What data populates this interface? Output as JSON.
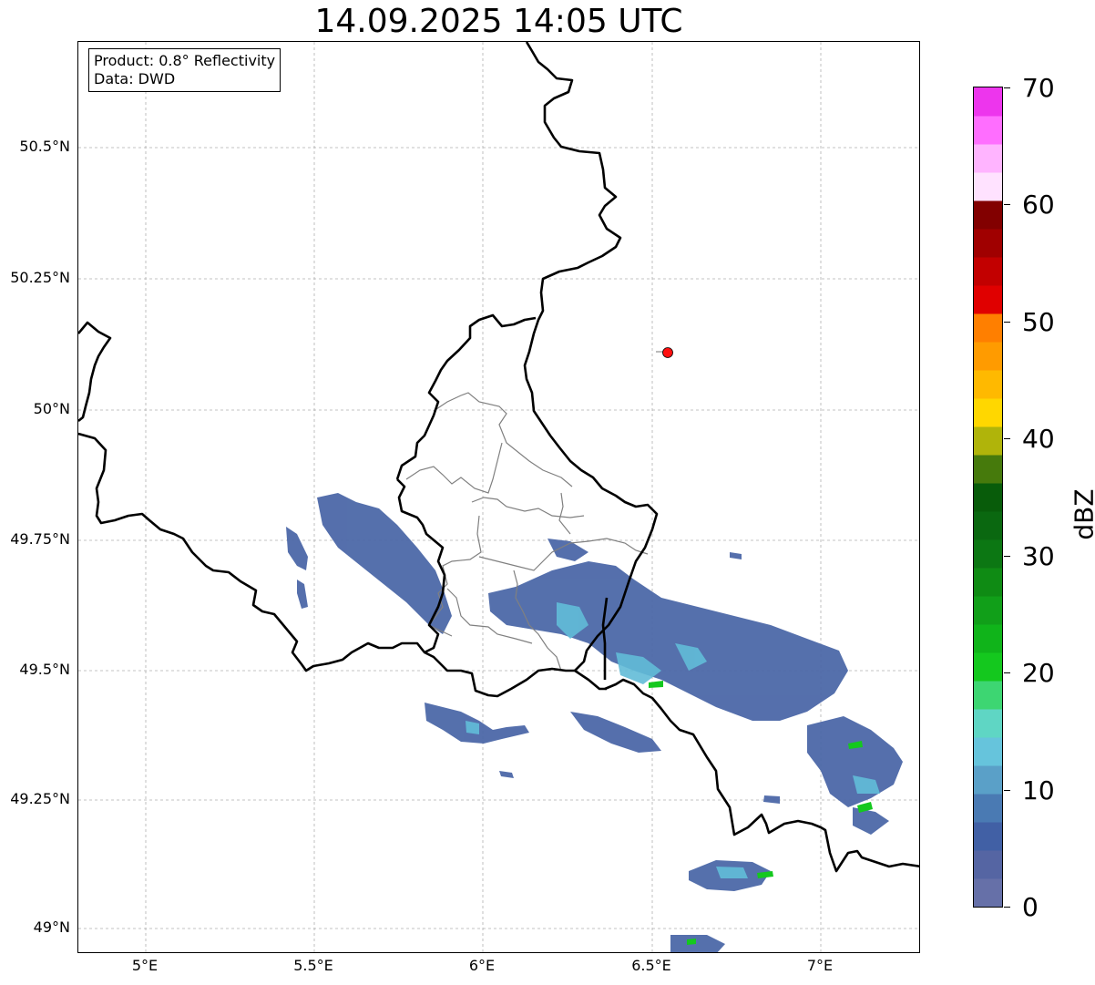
{
  "title": "14.09.2025 14:05 UTC",
  "info_box": {
    "product": "Product: 0.8° Reflectivity",
    "source": "Data: DWD"
  },
  "lat_labels": [
    "50.5°N",
    "50.25°N",
    "50°N",
    "49.75°N",
    "49.5°N",
    "49.25°N",
    "49°N"
  ],
  "lon_labels": [
    "5°E",
    "5.5°E",
    "6°E",
    "6.5°E",
    "7°E"
  ],
  "colorbar": {
    "label": "dBZ",
    "tick_labels": [
      "0",
      "10",
      "20",
      "30",
      "40",
      "50",
      "60",
      "70"
    ],
    "colors": [
      "#6670a8",
      "#5565a3",
      "#4160a5",
      "#4a7ab3",
      "#5aa0c8",
      "#66c4dc",
      "#5fd6c4",
      "#3dd672",
      "#14c81e",
      "#10b41a",
      "#119f19",
      "#0f8b14",
      "#0c7713",
      "#0a6810",
      "#085c0a",
      "#467a0c",
      "#b0b40a",
      "#ffd700",
      "#ffb900",
      "#ff9b00",
      "#ff7f00",
      "#e00000",
      "#c20000",
      "#a00000",
      "#820000",
      "#ffe2ff",
      "#ffb4ff",
      "#ff6eff",
      "#ed35ed"
    ]
  },
  "marker_color": "#ff1010",
  "chart_data": {
    "type": "map",
    "extent": {
      "lon": [
        4.8,
        7.3
      ],
      "lat": [
        48.95,
        50.7
      ]
    },
    "radar_site": {
      "lon": 6.548,
      "lat": 50.11
    },
    "gridlines": true
  }
}
